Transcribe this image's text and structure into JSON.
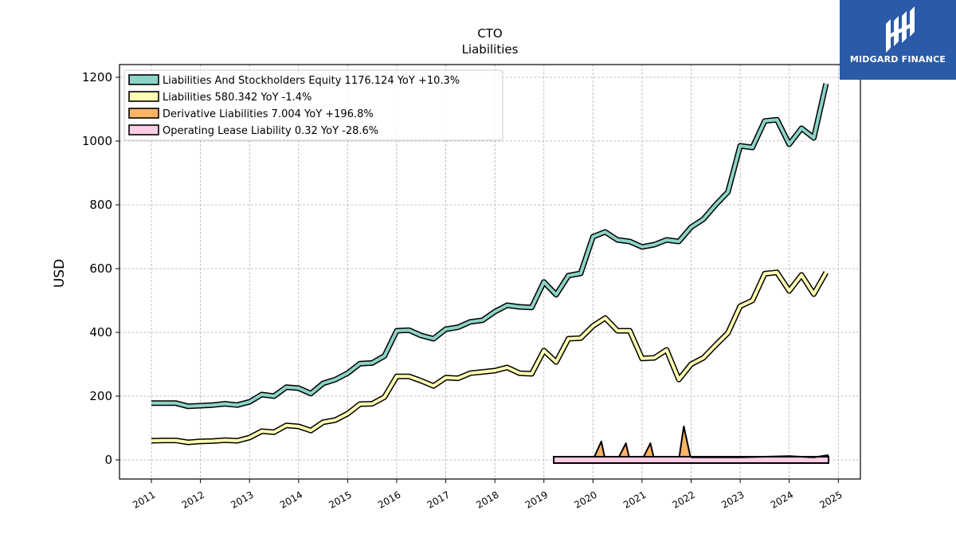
{
  "brand": {
    "name": "MIDGARD FINANCE",
    "bg_color": "#2a5aa8"
  },
  "chart_data": {
    "type": "line",
    "title": "CTO",
    "subtitle": "Liabilities",
    "ylabel": "USD",
    "xlabel": "",
    "ylim": [
      -60,
      1240
    ],
    "xlim": [
      2010.35,
      2025.45
    ],
    "yticks": [
      0,
      200,
      400,
      600,
      800,
      1000,
      1200
    ],
    "xticks": [
      2011,
      2012,
      2013,
      2014,
      2015,
      2016,
      2017,
      2018,
      2019,
      2020,
      2021,
      2022,
      2023,
      2024,
      2025
    ],
    "grid": true,
    "legend_position": "top-left",
    "series": [
      {
        "name": "Liabilities And Stockholders Equity  1176.124 YoY +10.3%",
        "color": "#8dd3c7",
        "x": [
          2011.0,
          2011.25,
          2011.5,
          2011.75,
          2012.0,
          2012.25,
          2012.5,
          2012.75,
          2013.0,
          2013.25,
          2013.5,
          2013.75,
          2014.0,
          2014.25,
          2014.5,
          2014.75,
          2015.0,
          2015.25,
          2015.5,
          2015.75,
          2016.0,
          2016.25,
          2016.5,
          2016.75,
          2017.0,
          2017.25,
          2017.5,
          2017.75,
          2018.0,
          2018.25,
          2018.5,
          2018.75,
          2019.0,
          2019.25,
          2019.5,
          2019.75,
          2020.0,
          2020.25,
          2020.5,
          2020.75,
          2021.0,
          2021.25,
          2021.5,
          2021.75,
          2022.0,
          2022.25,
          2022.5,
          2022.75,
          2023.0,
          2023.25,
          2023.5,
          2023.75,
          2024.0,
          2024.25,
          2024.5,
          2024.75
        ],
        "y": [
          178,
          178,
          178,
          168,
          170,
          172,
          176,
          172,
          182,
          205,
          200,
          228,
          225,
          208,
          240,
          252,
          272,
          302,
          304,
          326,
          405,
          407,
          390,
          380,
          410,
          416,
          433,
          438,
          465,
          485,
          480,
          478,
          558,
          518,
          578,
          585,
          700,
          715,
          690,
          685,
          668,
          675,
          690,
          685,
          730,
          755,
          800,
          840,
          985,
          980,
          1063,
          1067,
          990,
          1040,
          1010,
          1180
        ]
      },
      {
        "name": "Liabilities  580.342 YoY -1.4%",
        "color": "#ffffb3",
        "x": [
          2011.0,
          2011.25,
          2011.5,
          2011.75,
          2012.0,
          2012.25,
          2012.5,
          2012.75,
          2013.0,
          2013.25,
          2013.5,
          2013.75,
          2014.0,
          2014.25,
          2014.5,
          2014.75,
          2015.0,
          2015.25,
          2015.5,
          2015.75,
          2016.0,
          2016.25,
          2016.5,
          2016.75,
          2017.0,
          2017.25,
          2017.5,
          2017.75,
          2018.0,
          2018.25,
          2018.5,
          2018.75,
          2019.0,
          2019.25,
          2019.5,
          2019.75,
          2020.0,
          2020.25,
          2020.5,
          2020.75,
          2021.0,
          2021.25,
          2021.5,
          2021.75,
          2022.0,
          2022.25,
          2022.5,
          2022.75,
          2023.0,
          2023.25,
          2023.5,
          2023.75,
          2024.0,
          2024.25,
          2024.5,
          2024.75
        ],
        "y": [
          60,
          61,
          61,
          55,
          58,
          59,
          62,
          60,
          70,
          90,
          87,
          108,
          105,
          92,
          118,
          125,
          145,
          175,
          176,
          197,
          262,
          262,
          248,
          232,
          258,
          256,
          272,
          276,
          280,
          290,
          272,
          270,
          343,
          307,
          380,
          382,
          420,
          445,
          405,
          405,
          318,
          320,
          345,
          252,
          300,
          320,
          360,
          398,
          482,
          500,
          584,
          588,
          530,
          580,
          520,
          588
        ]
      },
      {
        "name": "Derivative Liabilities  7.004 YoY +196.8%",
        "color": "#fdb462",
        "x": [
          2019.25,
          2019.5,
          2019.75,
          2020.0,
          2020.17,
          2020.25,
          2020.5,
          2020.67,
          2020.75,
          2021.0,
          2021.17,
          2021.25,
          2021.5,
          2021.67,
          2021.75,
          2021.85,
          2022.0
        ],
        "y": [
          0,
          0,
          0,
          0,
          58,
          0,
          0,
          52,
          0,
          0,
          52,
          0,
          0,
          0,
          0,
          105,
          0
        ]
      },
      {
        "name": "Operating Lease Liability  0.32 YoY -28.6%",
        "color": "#fccde5",
        "x": [
          2019.2,
          2019.5,
          2019.75,
          2020.0,
          2020.25,
          2020.5,
          2020.75,
          2021.0,
          2021.25,
          2021.5,
          2021.75,
          2022.0,
          2022.25,
          2022.5,
          2022.75,
          2023.0,
          2023.25,
          2023.5,
          2023.75,
          2024.0,
          2024.25,
          2024.5,
          2024.8
        ],
        "y": [
          2,
          2,
          1.5,
          1.5,
          1.2,
          1.2,
          1,
          1,
          0.8,
          0.8,
          0.6,
          0.6,
          0.5,
          0.5,
          0.45,
          0.45,
          0.4,
          0.4,
          0.35,
          0.35,
          0.33,
          0.33,
          0.32
        ]
      }
    ],
    "extra_line": {
      "color": "#000000",
      "x": [
        2022.0,
        2022.5,
        2023.0,
        2023.5,
        2024.0,
        2024.5,
        2024.8
      ],
      "y": [
        8,
        8,
        8,
        10,
        12,
        8,
        15
      ]
    }
  }
}
